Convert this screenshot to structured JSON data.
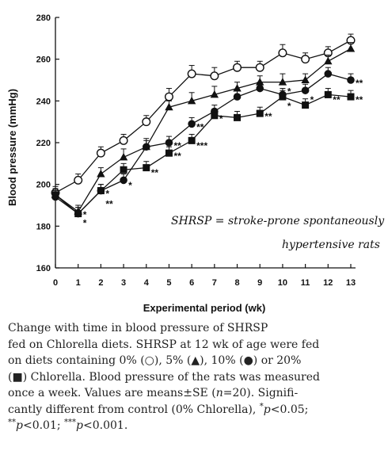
{
  "chart_data": {
    "type": "line",
    "ylabel": "Blood pressure (mmHg)",
    "xlabel": "Experimental period (wk)",
    "xlim": [
      0,
      13
    ],
    "ylim": [
      160,
      280
    ],
    "xticks": [
      "0",
      "1",
      "2",
      "3",
      "4",
      "5",
      "6",
      "7",
      "8",
      "9",
      "10",
      "11",
      "12",
      "13"
    ],
    "yticks": [
      "160",
      "180",
      "200",
      "220",
      "240",
      "260",
      "280"
    ],
    "x": [
      0,
      1,
      2,
      3,
      4,
      5,
      6,
      7,
      8,
      9,
      10,
      11,
      12,
      13
    ],
    "series": [
      {
        "marker": "open-circle",
        "values": [
          196,
          202,
          215,
          221,
          230,
          242,
          253,
          252,
          256,
          256,
          263,
          260,
          263,
          269
        ],
        "err": [
          3,
          3,
          3,
          3,
          3,
          4,
          4,
          4,
          3,
          3,
          4,
          3,
          3,
          3
        ]
      },
      {
        "marker": "filled-triangle",
        "values": [
          195,
          187,
          205,
          213,
          218,
          237,
          240,
          243,
          246,
          249,
          249,
          250,
          259,
          265
        ],
        "err": [
          3,
          3,
          3,
          4,
          4,
          3,
          4,
          4,
          3,
          3,
          4,
          3,
          3,
          3
        ]
      },
      {
        "marker": "filled-circle",
        "values": [
          194,
          186,
          197,
          202,
          218,
          220,
          229,
          235,
          242,
          246,
          243,
          245,
          253,
          250
        ],
        "err": [
          3,
          3,
          3,
          3,
          3,
          3,
          3,
          3,
          3,
          3,
          3,
          3,
          3,
          3
        ]
      },
      {
        "marker": "filled-square",
        "values": [
          195,
          186,
          197,
          207,
          208,
          215,
          221,
          233,
          232,
          234,
          242,
          238,
          243,
          242
        ],
        "err": [
          3,
          3,
          3,
          3,
          3,
          3,
          3,
          3,
          3,
          3,
          3,
          3,
          3,
          3
        ]
      }
    ],
    "significance_marks": [
      {
        "x": 1,
        "y": 187,
        "text": "*"
      },
      {
        "x": 1,
        "y": 183,
        "text": "*"
      },
      {
        "x": 2,
        "y": 197,
        "text": "*"
      },
      {
        "x": 2,
        "y": 192,
        "text": "**"
      },
      {
        "x": 3,
        "y": 201,
        "text": "*"
      },
      {
        "x": 4,
        "y": 207,
        "text": "**"
      },
      {
        "x": 5,
        "y": 220,
        "text": "**"
      },
      {
        "x": 5,
        "y": 215,
        "text": "**"
      },
      {
        "x": 6,
        "y": 229,
        "text": "**"
      },
      {
        "x": 6,
        "y": 220,
        "text": "***"
      },
      {
        "x": 7,
        "y": 233,
        "text": "*"
      },
      {
        "x": 9,
        "y": 234,
        "text": "**"
      },
      {
        "x": 10,
        "y": 246,
        "text": "*"
      },
      {
        "x": 10,
        "y": 239,
        "text": "*"
      },
      {
        "x": 11,
        "y": 242,
        "text": "*"
      },
      {
        "x": 12,
        "y": 242,
        "text": "**"
      },
      {
        "x": 13,
        "y": 250,
        "text": "**"
      },
      {
        "x": 13,
        "y": 242,
        "text": "**"
      }
    ],
    "annotation": {
      "line1": "SHRSP = stroke-prone spontaneously",
      "line2": "hypertensive rats"
    }
  },
  "caption": {
    "l1": "Change with time in blood pressure of SHRSP",
    "l2": "fed on Chlorella diets. SHRSP at 12 wk of age were fed",
    "l3a": "on diets containing 0% (",
    "sym_open_circle": "○",
    "l3b": "), 5% (",
    "sym_triangle": "▲",
    "l3c": "), 10% (",
    "sym_filled_circle": "●",
    "l3d": ") or 20%",
    "l4a": "(",
    "sym_square": "■",
    "l4b": ") Chlorella. Blood pressure of the rats was measured",
    "l5a": "once a week. Values are means±SE (",
    "l5n": "n",
    "l5b": "=20). Signifi-",
    "l6a": "cantly different from control (0% Chlorella), ",
    "l6s1": "*",
    "l6p1": "p",
    "l6b": "<0.05;",
    "l7s1": "**",
    "l7p1": "p",
    "l7a": "<0.01; ",
    "l7s2": "***",
    "l7p2": "p",
    "l7b": "<0.001."
  }
}
